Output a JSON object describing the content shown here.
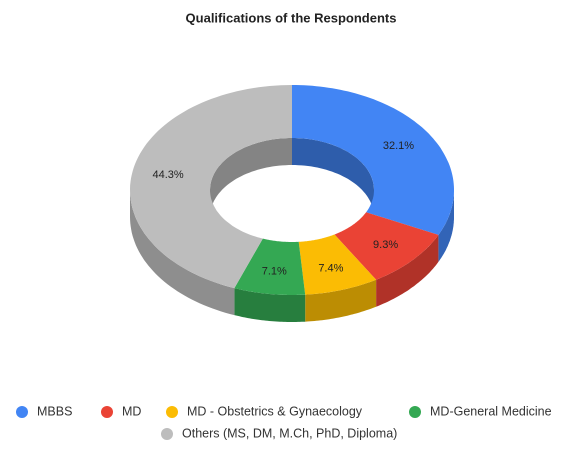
{
  "chart_data": {
    "type": "pie",
    "donut": true,
    "three_d": true,
    "title": "Qualifications of the Respondents",
    "categories": [
      "MBBS",
      "MD",
      "MD - Obstetrics & Gynaecology",
      "MD-General Medicine",
      "Others (MS, DM, M.Ch, PhD, Diploma)"
    ],
    "values": [
      32.1,
      9.3,
      7.4,
      7.1,
      44.3
    ],
    "value_labels": [
      "32.1%",
      "9.3%",
      "7.4%",
      "7.1%",
      "44.3%"
    ],
    "colors": [
      "#4285f4",
      "#ea4335",
      "#fbbc04",
      "#34a853",
      "#bdbdbd"
    ],
    "legend": "bottom"
  }
}
